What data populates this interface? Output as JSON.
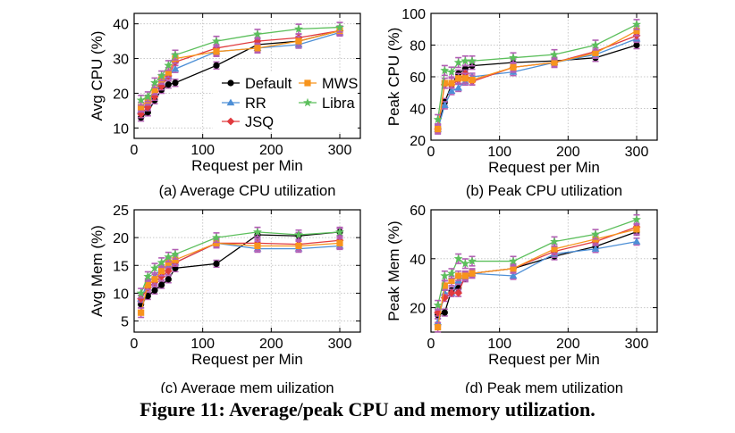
{
  "figure": {
    "caption": "Figure 11: Average/peak CPU and memory utilization."
  },
  "colors": {
    "Default": "#000000",
    "RR": "#4d8fd6",
    "JSQ": "#e03a3e",
    "MWS": "#f7941d",
    "Libra": "#5cbf5c",
    "errorbar": "#b35fb5"
  },
  "legend": {
    "entries": [
      "Default",
      "MWS",
      "RR",
      "Libra",
      "JSQ"
    ]
  },
  "chart_data": [
    {
      "type": "line",
      "title": "(a) Average CPU utilization",
      "xlabel": "Request per Min",
      "ylabel": "Avg CPU (%)",
      "xlim": [
        0,
        330
      ],
      "ylim": [
        7,
        43
      ],
      "xticks": [
        0,
        100,
        200,
        300
      ],
      "yticks": [
        10,
        20,
        30,
        40
      ],
      "legend": "inside-center-right",
      "x": [
        10,
        20,
        30,
        40,
        50,
        60,
        120,
        180,
        240,
        300
      ],
      "series": [
        {
          "name": "Default",
          "values": [
            13,
            14.5,
            18,
            21,
            22.5,
            23,
            28,
            34,
            35,
            38
          ]
        },
        {
          "name": "RR",
          "values": [
            15,
            17,
            20,
            23,
            25,
            27,
            32,
            33,
            34,
            37.5
          ]
        },
        {
          "name": "JSQ",
          "values": [
            14,
            16,
            19,
            22,
            25,
            29,
            33,
            35,
            36,
            38
          ]
        },
        {
          "name": "MWS",
          "values": [
            16,
            18,
            21,
            24,
            26,
            30,
            32,
            33,
            35,
            38
          ]
        },
        {
          "name": "Libra",
          "values": [
            18,
            19,
            23,
            25,
            28,
            31,
            35,
            37,
            38.5,
            39
          ]
        }
      ]
    },
    {
      "type": "line",
      "title": "(b) Peak CPU utilization",
      "xlabel": "Request per Min",
      "ylabel": "Peak CPU (%)",
      "xlim": [
        0,
        330
      ],
      "ylim": [
        20,
        100
      ],
      "xticks": [
        0,
        100,
        200,
        300
      ],
      "yticks": [
        20,
        40,
        60,
        80,
        100
      ],
      "x": [
        10,
        20,
        30,
        40,
        50,
        60,
        120,
        180,
        240,
        300
      ],
      "series": [
        {
          "name": "Default",
          "values": [
            28,
            44,
            55,
            62,
            65,
            67,
            69,
            70,
            72,
            80
          ]
        },
        {
          "name": "RR",
          "values": [
            27,
            42,
            51,
            53,
            57,
            60,
            63,
            69,
            74,
            84
          ]
        },
        {
          "name": "JSQ",
          "values": [
            27,
            55,
            55,
            58,
            62,
            57,
            66,
            69,
            76,
            86
          ]
        },
        {
          "name": "MWS",
          "values": [
            27,
            56,
            56,
            59,
            59,
            58,
            66,
            69,
            75,
            89
          ]
        },
        {
          "name": "Libra",
          "values": [
            33,
            64,
            63,
            69,
            70,
            70,
            72,
            74,
            80,
            93
          ]
        }
      ]
    },
    {
      "type": "line",
      "title": "(c) Average mem uilization",
      "xlabel": "Request per Min",
      "ylabel": "Avg Mem (%)",
      "xlim": [
        0,
        330
      ],
      "ylim": [
        3,
        25
      ],
      "xticks": [
        0,
        100,
        200,
        300
      ],
      "yticks": [
        5,
        10,
        15,
        20,
        25
      ],
      "x": [
        10,
        20,
        30,
        40,
        50,
        60,
        120,
        180,
        240,
        300
      ],
      "series": [
        {
          "name": "Default",
          "values": [
            8,
            9.5,
            10.5,
            11.5,
            12.5,
            14.5,
            15.3,
            20.5,
            20.3,
            21
          ]
        },
        {
          "name": "RR",
          "values": [
            9,
            12,
            13,
            14.5,
            15,
            15.5,
            19,
            18,
            18,
            18.5
          ]
        },
        {
          "name": "JSQ",
          "values": [
            9,
            11,
            12,
            13,
            14,
            15.5,
            19,
            19,
            18.8,
            19.5
          ]
        },
        {
          "name": "MWS",
          "values": [
            6.5,
            11.5,
            12.5,
            14,
            15.5,
            16,
            19,
            18.5,
            18.5,
            19
          ]
        },
        {
          "name": "Libra",
          "values": [
            10,
            13,
            14.5,
            15.5,
            16.5,
            17,
            20,
            21,
            20.5,
            21
          ]
        }
      ]
    },
    {
      "type": "line",
      "title": "(d) Peak mem utilization",
      "xlabel": "Request per Min",
      "ylabel": "Peak Mem (%)",
      "xlim": [
        0,
        330
      ],
      "ylim": [
        10,
        60
      ],
      "xticks": [
        0,
        100,
        200,
        300
      ],
      "yticks": [
        20,
        40,
        60
      ],
      "x": [
        10,
        20,
        30,
        40,
        50,
        60,
        120,
        180,
        240,
        300
      ],
      "series": [
        {
          "name": "Default",
          "values": [
            17,
            18,
            27,
            28,
            32,
            34,
            36,
            41,
            45,
            51
          ]
        },
        {
          "name": "RR",
          "values": [
            14,
            26,
            26,
            31,
            33,
            34,
            33,
            42,
            44,
            47
          ]
        },
        {
          "name": "JSQ",
          "values": [
            18,
            24,
            26,
            26,
            33,
            34,
            36,
            43,
            47,
            53
          ]
        },
        {
          "name": "MWS",
          "values": [
            12,
            29,
            31,
            33,
            33,
            34,
            36,
            44,
            48,
            52
          ]
        },
        {
          "name": "Libra",
          "values": [
            21,
            33,
            34,
            40,
            38,
            39,
            39,
            47,
            50,
            56
          ]
        }
      ]
    }
  ]
}
